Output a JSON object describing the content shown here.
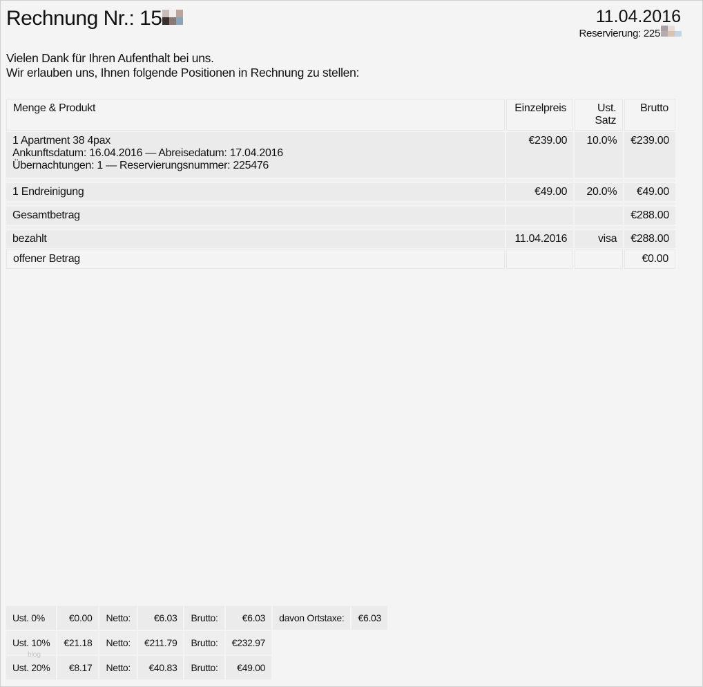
{
  "header": {
    "title": "Rechnung Nr.: 15",
    "date": "11.04.2016",
    "reservation": "Reservierung: 225"
  },
  "intro": {
    "line1": "Vielen Dank für Ihren Aufenthalt bei uns.",
    "line2": "Wir erlauben uns, Ihnen folgende Positionen in Rechnung zu stellen:"
  },
  "table": {
    "columns": [
      "Menge & Produkt",
      "Einzelpreis",
      "Ust. Satz",
      "Brutto"
    ],
    "items": [
      {
        "product": "1 Apartment 38 4pax",
        "detail1": "Ankunftsdatum: 16.04.2016 — Abreisedatum: 17.04.2016",
        "detail2": "Übernachtungen: 1 — Reservierungsnummer: 225476",
        "price": "€239.00",
        "vat": "10.0%",
        "gross": "€239.00"
      },
      {
        "product": "1 Endreinigung",
        "price": "€49.00",
        "vat": "20.0%",
        "gross": "€49.00"
      }
    ],
    "total": {
      "label": "Gesamtbetrag",
      "gross": "€288.00"
    },
    "paid": {
      "label": "bezahlt",
      "date": "11.04.2016",
      "method": "visa",
      "gross": "€288.00"
    },
    "open": {
      "label": "offener Betrag",
      "gross": "€0.00"
    }
  },
  "tax_summary": [
    {
      "rate": "Ust. 0%",
      "tax": "€0.00",
      "net_label": "Netto:",
      "net": "€6.03",
      "gross_label": "Brutto:",
      "gross": "€6.03",
      "extra_label": "davon Ortstaxe:",
      "extra": "€6.03"
    },
    {
      "rate": "Ust. 10%",
      "tax": "€21.18",
      "net_label": "Netto:",
      "net": "€211.79",
      "gross_label": "Brutto:",
      "gross": "€232.97"
    },
    {
      "rate": "Ust. 20%",
      "tax": "€8.17",
      "net_label": "Netto:",
      "net": "€40.83",
      "gross_label": "Brutto:",
      "gross": "€49.00"
    }
  ],
  "watermark": "blog"
}
